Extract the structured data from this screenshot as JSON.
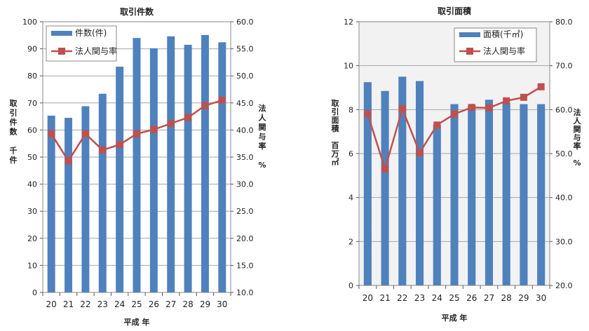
{
  "chart_data": [
    {
      "type": "bar+line",
      "title": "取引件数",
      "categories": [
        "20",
        "21",
        "22",
        "23",
        "24",
        "25",
        "26",
        "27",
        "28",
        "29",
        "30"
      ],
      "xlabel": "平成 年",
      "ylabel_left_lines": [
        "取",
        "引",
        "件",
        "数",
        "",
        "千",
        "件"
      ],
      "ylabel_right_lines": [
        "法",
        "人",
        "関",
        "与",
        "率",
        "",
        "%"
      ],
      "ylim_left": [
        0,
        100
      ],
      "yticks_left": [
        "0",
        "10",
        "20",
        "30",
        "40",
        "50",
        "60",
        "70",
        "80",
        "90",
        "100"
      ],
      "ylim_right": [
        10,
        60
      ],
      "yticks_right": [
        "10.0",
        "15.0",
        "20.0",
        "25.0",
        "30.0",
        "35.0",
        "40.0",
        "45.0",
        "50.0",
        "55.0",
        "60.0"
      ],
      "legend_placement": "top-left",
      "series": [
        {
          "name": "件数(件)",
          "kind": "bar",
          "axis": "left",
          "color": "#4f81bd",
          "values": [
            65.3,
            64.5,
            68.8,
            73.4,
            83.4,
            94.0,
            90.2,
            94.6,
            91.5,
            95.1,
            92.4
          ]
        },
        {
          "name": "法人関与率",
          "kind": "line",
          "axis": "right",
          "color": "#c0504d",
          "values": [
            39.3,
            34.3,
            39.3,
            36.3,
            37.3,
            39.3,
            40.1,
            41.2,
            42.3,
            44.5,
            45.5
          ]
        }
      ]
    },
    {
      "type": "bar+line",
      "title": "取引面積",
      "categories": [
        "20",
        "21",
        "22",
        "23",
        "24",
        "25",
        "26",
        "27",
        "28",
        "29",
        "30"
      ],
      "xlabel": "平成 年",
      "ylabel_left_lines": [
        "取",
        "引",
        "面",
        "積",
        "",
        "百",
        "万",
        "㎡"
      ],
      "ylabel_right_lines": [
        "法",
        "人",
        "関",
        "与",
        "率",
        "",
        "%"
      ],
      "ylim_left": [
        0,
        12
      ],
      "yticks_left": [
        "0",
        "2",
        "4",
        "6",
        "8",
        "10",
        "12"
      ],
      "ylim_right": [
        20,
        80
      ],
      "yticks_right": [
        "20.0",
        "30.0",
        "40.0",
        "50.0",
        "60.0",
        "70.0",
        "80.0"
      ],
      "legend_placement": "top-right",
      "series": [
        {
          "name": "面積(千㎡)",
          "kind": "bar",
          "axis": "left",
          "color": "#4f81bd",
          "values": [
            9.25,
            8.85,
            9.5,
            9.3,
            7.3,
            8.25,
            8.2,
            8.45,
            8.3,
            8.25,
            8.25
          ]
        },
        {
          "name": "法人関与率",
          "kind": "line",
          "axis": "right",
          "color": "#c0504d",
          "values": [
            59.0,
            46.5,
            60.2,
            50.2,
            56.5,
            59.0,
            60.5,
            60.4,
            62.0,
            62.8,
            65.2
          ]
        }
      ]
    }
  ]
}
